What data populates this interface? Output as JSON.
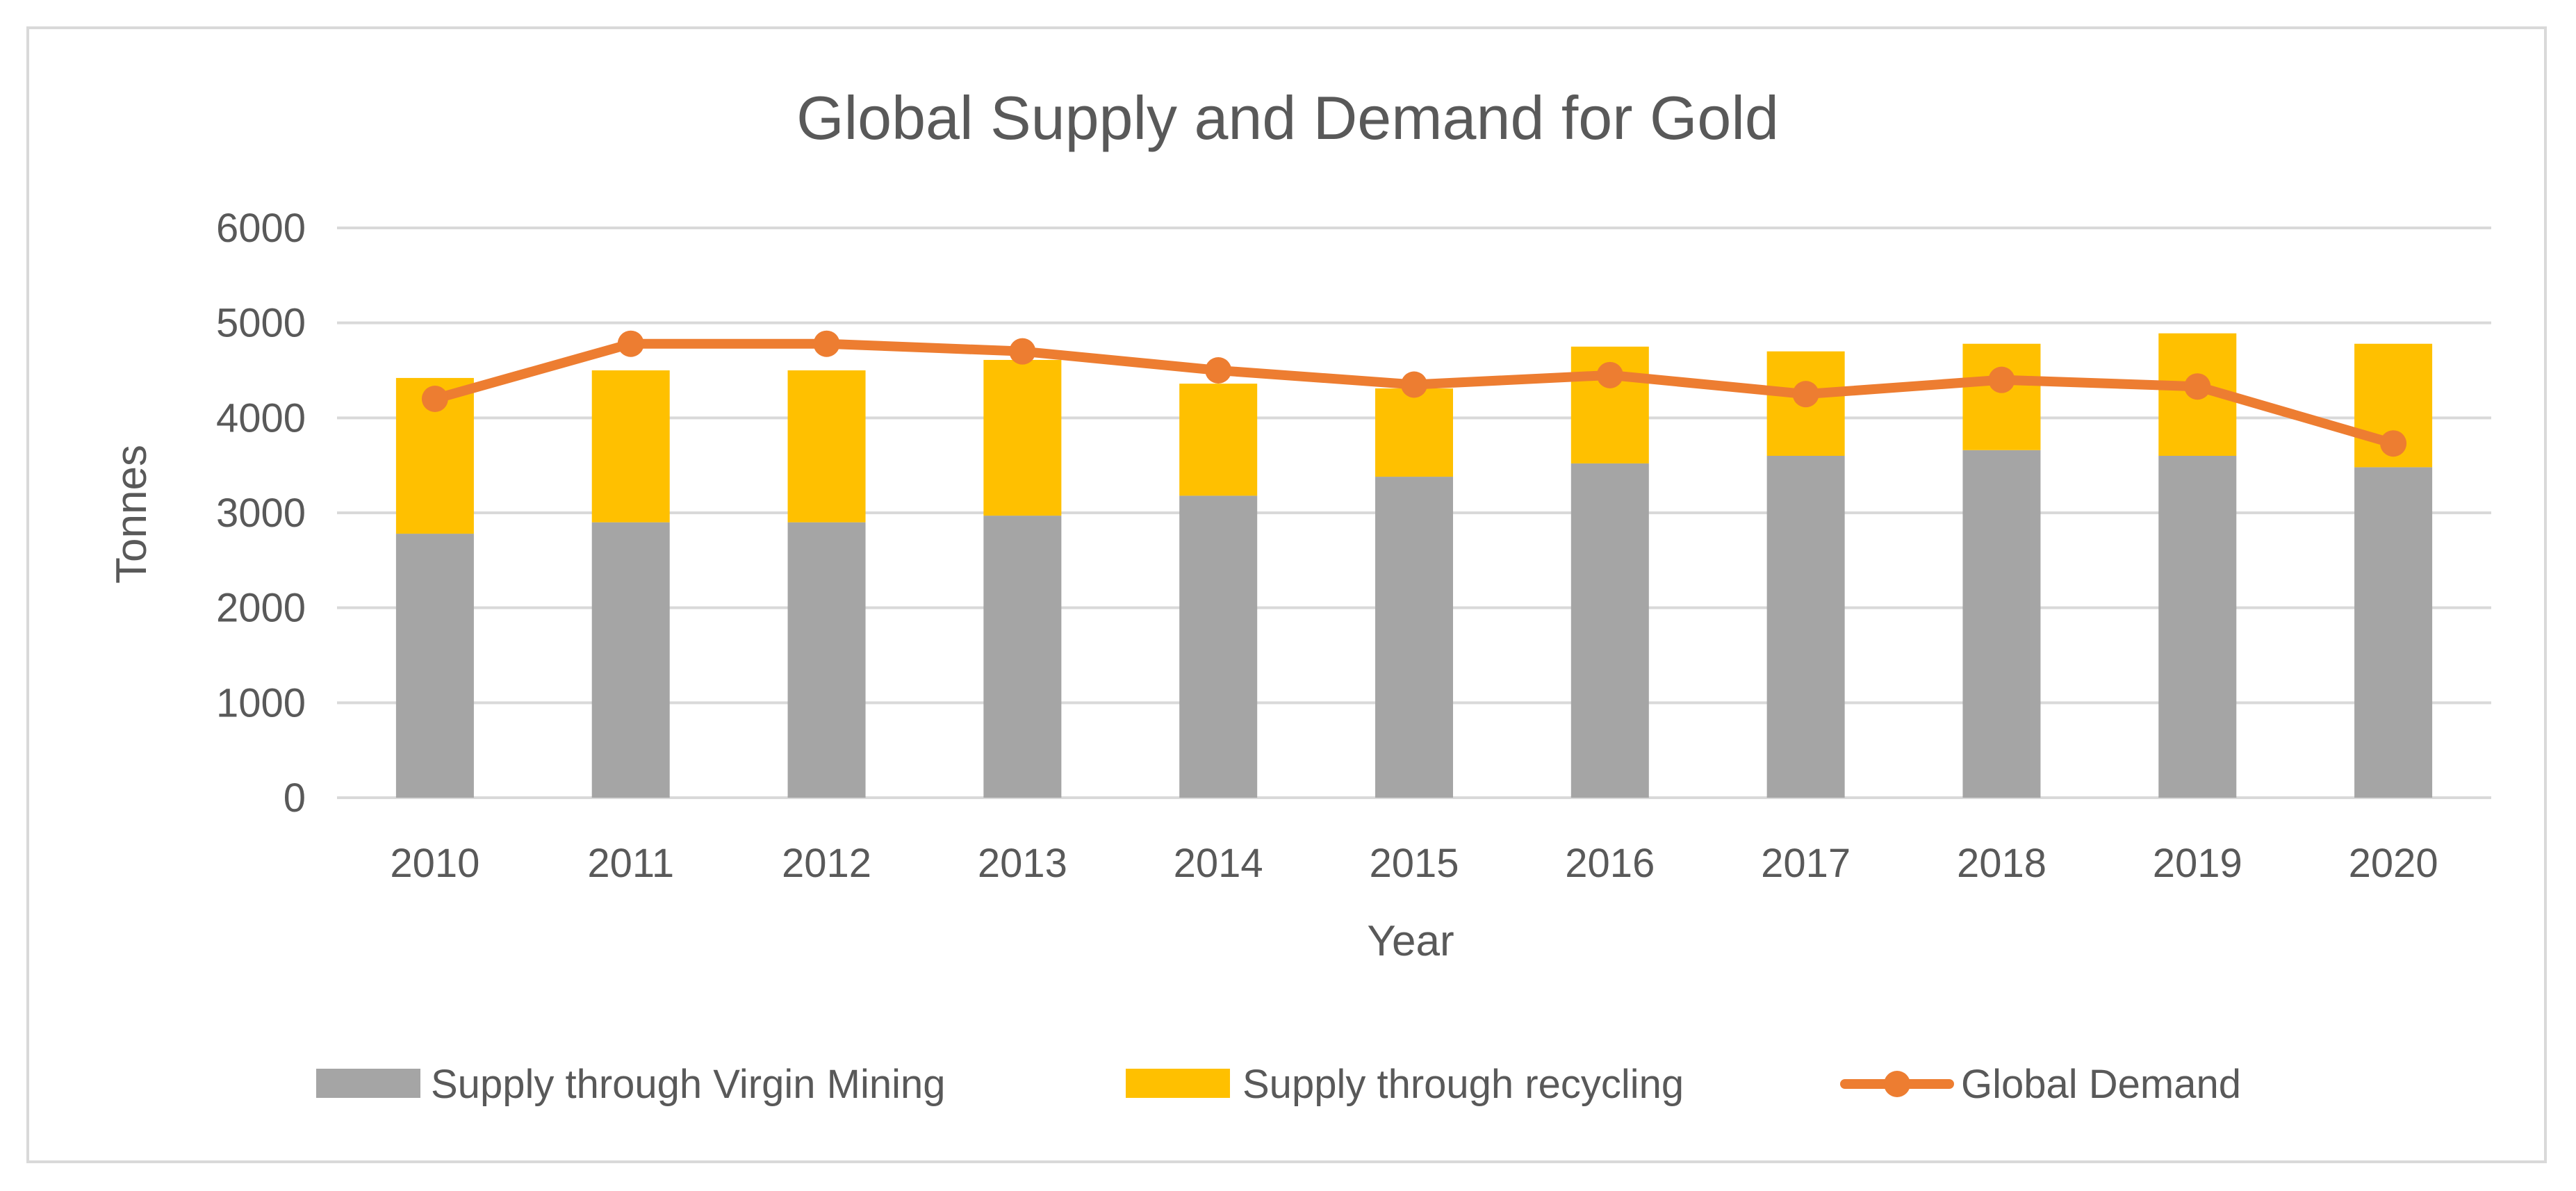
{
  "chart_data": {
    "type": "bar",
    "stacked": true,
    "title": "Global Supply and Demand for Gold",
    "xlabel": "Year",
    "ylabel": "Tonnes",
    "ylim": [
      0,
      6000
    ],
    "yticks": [
      0,
      1000,
      2000,
      3000,
      4000,
      5000,
      6000
    ],
    "categories": [
      "2010",
      "2011",
      "2012",
      "2013",
      "2014",
      "2015",
      "2016",
      "2017",
      "2018",
      "2019",
      "2020"
    ],
    "series": [
      {
        "name": "Supply through Virgin Mining",
        "type": "bar",
        "color": "#a5a5a5",
        "values": [
          2780,
          2900,
          2900,
          2970,
          3180,
          3380,
          3520,
          3600,
          3660,
          3600,
          3480
        ]
      },
      {
        "name": "Supply through recycling",
        "type": "bar",
        "color": "#ffc000",
        "values": [
          1640,
          1600,
          1600,
          1640,
          1180,
          930,
          1230,
          1100,
          1120,
          1290,
          1300
        ]
      },
      {
        "name": "Global Demand",
        "type": "line",
        "color": "#ed7d31",
        "values": [
          4200,
          4780,
          4780,
          4700,
          4500,
          4350,
          4450,
          4250,
          4400,
          4330,
          3730
        ]
      }
    ],
    "grid": true,
    "legend": "bottom"
  }
}
